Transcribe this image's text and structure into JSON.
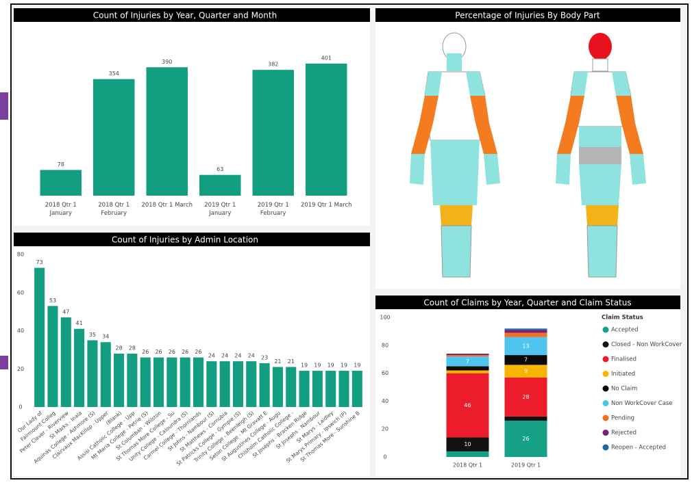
{
  "chart_data": [
    {
      "type": "bar",
      "title": "Count of Injuries by Year, Quarter and Month",
      "categories": [
        "2018 Qtr 1 January",
        "2018 Qtr 1 February",
        "2018 Qtr 1 March",
        "2019 Qtr 1 January",
        "2019 Qtr 1 February",
        "2019 Qtr 1 March"
      ],
      "values": [
        78,
        354,
        390,
        63,
        382,
        401
      ],
      "color": "#139e82"
    },
    {
      "type": "figure",
      "title": "Percentage of Injuries By Body Part"
    },
    {
      "type": "bar",
      "title": "Count of Injuries by Admin Location",
      "categories": [
        "Our Lady of",
        "Fairmount Colleg",
        "Peter Claver - Riverview",
        "St Marks - Inala",
        "Aquinas College - Ashmore (S)",
        "Clairvaux MacKillop - Upper",
        "(Blank)",
        "Assisi Catholic College - Upp",
        "Mt Maria College - Petrie (S)",
        "St Columban - Wilston",
        "St Thomas More College - Su",
        "Unity College - Caloundra (S)",
        "Carmel College - Thornlands",
        "St Johns - Nambour (S)",
        "St Matthews - Cornubia",
        "St Patricks College - Gympie (S)",
        "Trinity College - Beenleigh (S)",
        "Seton College - Mt Gravatt E",
        "St Augustines College - Augu",
        "Chisholm Catholic College -",
        "St Josephs - Bracken Ridge",
        "St Josephs - Nambour",
        "St Marys - Laidley",
        "St Marys Primary - Ipswich (P)",
        "St Thomas More - Sunshine B"
      ],
      "values": [
        73,
        53,
        47,
        41,
        35,
        34,
        28,
        28,
        26,
        26,
        26,
        26,
        26,
        24,
        24,
        24,
        24,
        23,
        21,
        21,
        19,
        19,
        19,
        19,
        19
      ],
      "color": "#139e82",
      "ylim": [
        0,
        80
      ],
      "yticks": [
        0,
        20,
        40,
        60,
        80
      ]
    },
    {
      "type": "stacked-bar",
      "title": "Count of Claims by Year, Quarter and Claim Status",
      "categories": [
        "2018 Qtr 1",
        "2019 Qtr 1"
      ],
      "legend_title": "Claim Status",
      "ylim": [
        0,
        100
      ],
      "yticks": [
        0,
        20,
        40,
        60,
        80,
        100
      ],
      "series": [
        {
          "name": "Accepted",
          "color": "#16a085",
          "values": [
            4,
            26
          ]
        },
        {
          "name": "Closed - Non WorkCover",
          "color": "#111111",
          "values": [
            10,
            3
          ]
        },
        {
          "name": "Finalised",
          "color": "#ec1c2a",
          "values": [
            46,
            28
          ]
        },
        {
          "name": "Initiated",
          "color": "#f7b500",
          "values": [
            2,
            9
          ]
        },
        {
          "name": "No Claim",
          "color": "#0a0a0a",
          "values": [
            3,
            7
          ]
        },
        {
          "name": "Non WorkCover Case",
          "color": "#4ec4ee",
          "values": [
            7,
            13
          ]
        },
        {
          "name": "Pending",
          "color": "#f36f21",
          "values": [
            1,
            3
          ]
        },
        {
          "name": "Rejected",
          "color": "#7a1f78",
          "values": [
            1,
            2
          ]
        },
        {
          "name": "Reopen - Accepted",
          "color": "#1b6aa5",
          "values": [
            0,
            1
          ]
        }
      ]
    }
  ]
}
